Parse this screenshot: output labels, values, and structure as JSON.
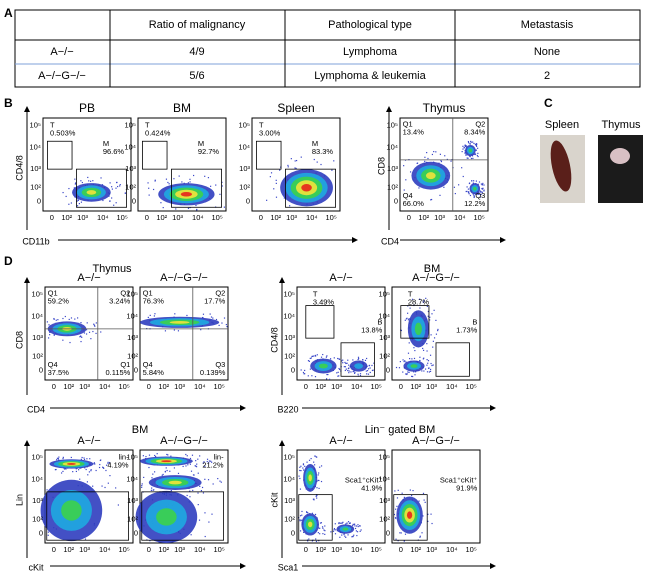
{
  "figure": {
    "panel_labels": [
      "A",
      "B",
      "C",
      "D"
    ],
    "table": {
      "header": [
        "Ratio of malignancy",
        "Pathological type",
        "Metastasis"
      ],
      "rows": [
        [
          "A−/−",
          "4/9",
          "Lymphoma",
          "None"
        ],
        [
          "A−/−G−/−",
          "5/6",
          "Lymphoma & leukemia",
          "2"
        ]
      ]
    },
    "axis_ticks": [
      "0",
      "10²",
      "10³",
      "10⁴",
      "10⁵"
    ],
    "group_titles": [
      "Thymus",
      "BM",
      "BM",
      "Lin⁻ gated BM"
    ],
    "photo_labels": [
      "Spleen",
      "Thymus"
    ],
    "axis_labels": [
      {
        "x": "CD11b",
        "y": "CD4/8"
      },
      {
        "x": "CD4",
        "y": "CD8"
      },
      {
        "x": "CD4",
        "y": "CD8"
      },
      {
        "x": "B220",
        "y": "CD4/8"
      },
      {
        "x": "cKit",
        "y": "Lin"
      },
      {
        "x": "Sca1",
        "y": "cKit"
      }
    ],
    "plots": [
      {
        "title": "PB",
        "gates": [
          {
            "name": "T",
            "value": "0.503%"
          },
          {
            "name": "M",
            "value": "96.6%"
          }
        ]
      },
      {
        "title": "BM",
        "gates": [
          {
            "name": "T",
            "value": "0.424%"
          },
          {
            "name": "M",
            "value": "92.7%"
          }
        ]
      },
      {
        "title": "Spleen",
        "gates": [
          {
            "name": "T",
            "value": "3.00%"
          },
          {
            "name": "M",
            "value": "83.3%"
          }
        ]
      },
      {
        "title": "Thymus",
        "gates": [
          {
            "name": "Q1",
            "value": "13.4%"
          },
          {
            "name": "Q2",
            "value": "8.34%"
          },
          {
            "name": "Q4",
            "value": "66.0%"
          },
          {
            "name": "Q3",
            "value": "12.2%"
          }
        ]
      },
      {
        "title": "A−/−",
        "gates": [
          {
            "name": "Q1",
            "value": "59.2%"
          },
          {
            "name": "Q2",
            "value": "3.24%"
          },
          {
            "name": "Q4",
            "value": "37.5%"
          },
          {
            "name": "Q1",
            "value": "0.115%"
          }
        ]
      },
      {
        "title": "A−/−G−/−",
        "gates": [
          {
            "name": "Q1",
            "value": "76.3%"
          },
          {
            "name": "Q2",
            "value": "17.7%"
          },
          {
            "name": "Q4",
            "value": "5.84%"
          },
          {
            "name": "Q3",
            "value": "0.139%"
          }
        ]
      },
      {
        "title": "A−/−",
        "gates": [
          {
            "name": "T",
            "value": "3.49%"
          },
          {
            "name": "B",
            "value": "13.8%"
          }
        ]
      },
      {
        "title": "A−/−G−/−",
        "gates": [
          {
            "name": "T",
            "value": "28.7%"
          },
          {
            "name": "B",
            "value": "1.73%"
          }
        ]
      },
      {
        "title": "A−/−",
        "gates": [
          {
            "name": "lin-",
            "value": "4.19%"
          }
        ]
      },
      {
        "title": "A−/−G−/−",
        "gates": [
          {
            "name": "lin-",
            "value": "21.2%"
          }
        ]
      },
      {
        "title": "A−/−",
        "gates": [
          {
            "name": "Sca1⁺cKit⁺",
            "value": "41.9%"
          }
        ]
      },
      {
        "title": "A−/−G−/−",
        "gates": [
          {
            "name": "Sca1⁺cKit⁺",
            "value": "91.9%"
          }
        ]
      }
    ]
  }
}
